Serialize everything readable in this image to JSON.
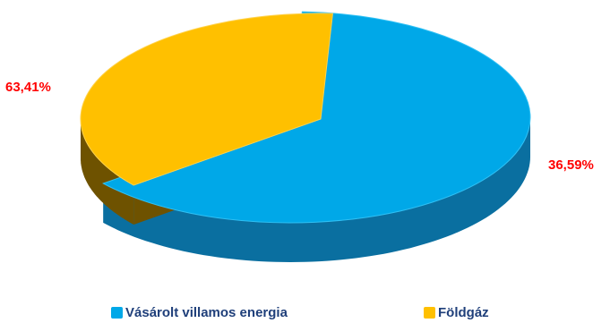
{
  "chart_data": {
    "type": "pie",
    "style": "3d-exploded",
    "title": "",
    "slices": [
      {
        "label": "Vásárolt villamos energia",
        "value": 63.41,
        "value_label": "63,41%",
        "color": "#00a8e8"
      },
      {
        "label": "Földgáz",
        "value": 36.59,
        "value_label": "36,59%",
        "color": "#ffc000"
      }
    ],
    "legend": {
      "position": "bottom"
    }
  }
}
